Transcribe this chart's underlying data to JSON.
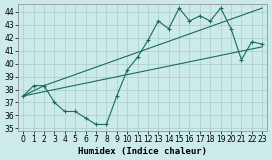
{
  "xlabel": "Humidex (Indice chaleur)",
  "background_color": "#cceaea",
  "grid_color": "#aacccc",
  "line_color": "#1a6b5a",
  "xlim": [
    -0.5,
    23.5
  ],
  "ylim": [
    34.8,
    44.6
  ],
  "yticks": [
    35,
    36,
    37,
    38,
    39,
    40,
    41,
    42,
    43,
    44
  ],
  "xticks": [
    0,
    1,
    2,
    3,
    4,
    5,
    6,
    7,
    8,
    9,
    10,
    11,
    12,
    13,
    14,
    15,
    16,
    17,
    18,
    19,
    20,
    21,
    22,
    23
  ],
  "line1_x": [
    0,
    1,
    2,
    3,
    4,
    5,
    6,
    7,
    8,
    9,
    10,
    11,
    12,
    13,
    14,
    15,
    16,
    17,
    18,
    19,
    20,
    21,
    22,
    23
  ],
  "line1_y": [
    37.5,
    38.3,
    38.3,
    37.0,
    36.3,
    36.3,
    35.8,
    35.3,
    35.3,
    37.5,
    39.5,
    40.5,
    41.8,
    43.3,
    42.7,
    44.3,
    43.3,
    43.7,
    43.3,
    44.3,
    42.7,
    40.3,
    41.7,
    41.5
  ],
  "line2_x": [
    0,
    2,
    23
  ],
  "line2_y": [
    37.5,
    38.3,
    44.3
  ],
  "line3_x": [
    0,
    23
  ],
  "line3_y": [
    37.5,
    41.3
  ]
}
